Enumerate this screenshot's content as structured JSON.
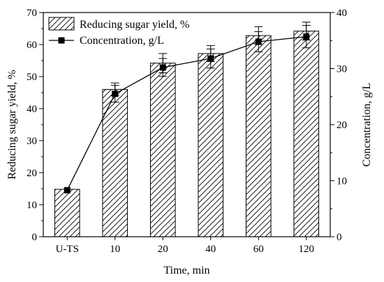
{
  "chart_data": {
    "type": "bar",
    "categories": [
      "U-TS",
      "10",
      "20",
      "40",
      "60",
      "120"
    ],
    "xlabel": "Time, min",
    "series": [
      {
        "name": "Reducing sugar yield, %",
        "chart": "bar",
        "axis": "left",
        "values": [
          14.8,
          46.0,
          54.2,
          57.2,
          62.8,
          64.2
        ],
        "errors": [
          0,
          2.0,
          3.0,
          2.5,
          2.8,
          2.8
        ]
      },
      {
        "name": "Concentration, g/L",
        "chart": "line",
        "axis": "right",
        "marker": "square",
        "values": [
          8.3,
          25.5,
          30.2,
          31.8,
          34.8,
          35.7
        ],
        "errors": [
          0,
          1.5,
          1.6,
          1.7,
          1.8,
          2.0
        ]
      }
    ],
    "y_left": {
      "label": "Reducing sugar yield, %",
      "ylim": [
        0,
        70
      ],
      "ticks": [
        "0",
        "10",
        "20",
        "30",
        "40",
        "50",
        "60",
        "70"
      ]
    },
    "y_right": {
      "label": "Concentration, g/L",
      "ylim": [
        0,
        40
      ],
      "ticks": [
        "0",
        "10",
        "20",
        "30",
        "40"
      ]
    },
    "bar_fill": "hatched",
    "legend_position": "top-left",
    "grid": false
  }
}
